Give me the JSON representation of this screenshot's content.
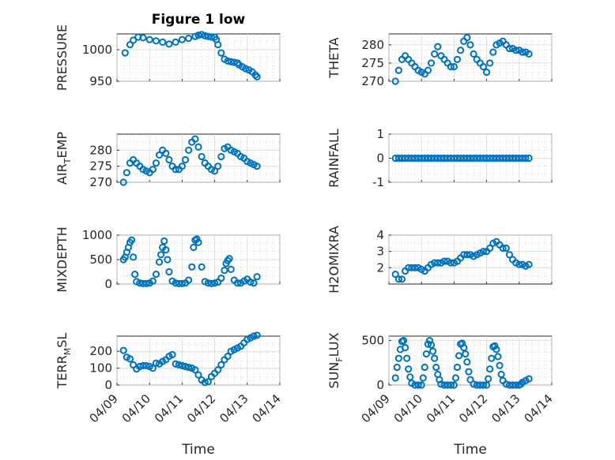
{
  "chart_data": {
    "type": "scatter",
    "title": "Figure 1 low",
    "marker": "circle",
    "color": "#0072BD",
    "time_ticks": [
      "04/09",
      "04/10",
      "04/11",
      "04/12",
      "04/13",
      "04/14"
    ],
    "xlabel": "Time",
    "x_unit": "days since 04/09 00:00",
    "x_range": [
      0,
      5
    ],
    "panels": [
      {
        "id": "pressure",
        "ylabel": "PRESSURE",
        "ylim": [
          950,
          1025
        ],
        "yticks": [
          950,
          1000
        ],
        "x": [
          0.25,
          0.4,
          0.5,
          0.65,
          0.8,
          1.0,
          1.2,
          1.4,
          1.6,
          1.8,
          2.0,
          2.2,
          2.4,
          2.5,
          2.6,
          2.7,
          2.8,
          2.9,
          3.0,
          3.05,
          3.1,
          3.2,
          3.3,
          3.4,
          3.5,
          3.6,
          3.7,
          3.75,
          3.85,
          3.95,
          4.05,
          4.15,
          4.25,
          4.3
        ],
        "y": [
          995,
          1008,
          1015,
          1020,
          1019,
          1016,
          1014,
          1012,
          1009,
          1012,
          1016,
          1018,
          1021,
          1023,
          1024,
          1022,
          1021,
          1020,
          1020,
          1016,
          1008,
          995,
          985,
          982,
          981,
          980,
          979,
          976,
          973,
          970,
          968,
          965,
          960,
          957
        ]
      },
      {
        "id": "theta",
        "ylabel": "THETA",
        "ylim": [
          270,
          283
        ],
        "yticks": [
          270,
          275,
          280
        ],
        "x": [
          0.2,
          0.3,
          0.4,
          0.5,
          0.6,
          0.7,
          0.8,
          0.9,
          1.0,
          1.1,
          1.2,
          1.3,
          1.4,
          1.5,
          1.6,
          1.7,
          1.8,
          1.9,
          2.0,
          2.1,
          2.2,
          2.3,
          2.4,
          2.5,
          2.6,
          2.7,
          2.8,
          2.9,
          3.0,
          3.1,
          3.2,
          3.3,
          3.4,
          3.5,
          3.6,
          3.7,
          3.8,
          3.9,
          4.0,
          4.1,
          4.2,
          4.3
        ],
        "y": [
          270,
          273,
          276,
          277,
          276,
          275,
          274,
          273,
          272.5,
          272,
          273,
          275,
          277.5,
          279.5,
          277,
          276,
          275,
          274,
          274,
          276,
          278.5,
          281,
          282,
          280,
          277.5,
          276,
          275,
          274,
          272.5,
          275,
          278,
          280,
          280.5,
          281,
          280,
          279,
          279,
          278.5,
          278.5,
          278,
          278,
          277.5
        ]
      },
      {
        "id": "air_temp",
        "ylabel": "AIR_TEMP",
        "ylim": [
          270,
          285
        ],
        "yticks": [
          270,
          275,
          280
        ],
        "x": [
          0.2,
          0.3,
          0.4,
          0.5,
          0.6,
          0.7,
          0.8,
          0.9,
          1.0,
          1.1,
          1.2,
          1.3,
          1.4,
          1.5,
          1.6,
          1.7,
          1.8,
          1.9,
          2.0,
          2.1,
          2.2,
          2.3,
          2.4,
          2.5,
          2.6,
          2.7,
          2.8,
          2.9,
          3.0,
          3.1,
          3.2,
          3.3,
          3.4,
          3.5,
          3.6,
          3.7,
          3.8,
          3.9,
          4.0,
          4.1,
          4.2,
          4.3
        ],
        "y": [
          270,
          273,
          276,
          277,
          276,
          275,
          274,
          273.5,
          273,
          274,
          276,
          278.5,
          280,
          279,
          277,
          275,
          274,
          274,
          275,
          277,
          280,
          282.5,
          283.5,
          281,
          278,
          276,
          275,
          274,
          273.5,
          275,
          278,
          280.5,
          281,
          280,
          279.5,
          279,
          278,
          277.5,
          276.5,
          276,
          275.5,
          275
        ]
      },
      {
        "id": "rainfall",
        "ylabel": "RAINFALL",
        "ylim": [
          -1,
          1
        ],
        "yticks": [
          -1,
          0,
          1
        ],
        "x": [
          0.2,
          0.3,
          0.4,
          0.5,
          0.6,
          0.7,
          0.8,
          0.9,
          1.0,
          1.1,
          1.2,
          1.3,
          1.4,
          1.5,
          1.6,
          1.7,
          1.8,
          1.9,
          2.0,
          2.1,
          2.2,
          2.3,
          2.4,
          2.5,
          2.6,
          2.7,
          2.8,
          2.9,
          3.0,
          3.1,
          3.2,
          3.3,
          3.4,
          3.5,
          3.6,
          3.7,
          3.8,
          3.9,
          4.0,
          4.1,
          4.2,
          4.3
        ],
        "y": [
          0,
          0,
          0,
          0,
          0,
          0,
          0,
          0,
          0,
          0,
          0,
          0,
          0,
          0,
          0,
          0,
          0,
          0,
          0,
          0,
          0,
          0,
          0,
          0,
          0,
          0,
          0,
          0,
          0,
          0,
          0,
          0,
          0,
          0,
          0,
          0,
          0,
          0,
          0,
          0,
          0,
          0
        ]
      },
      {
        "id": "mixdepth",
        "ylabel": "MIXDEPTH",
        "ylim": [
          0,
          1000
        ],
        "yticks": [
          0,
          500,
          1000
        ],
        "x": [
          0.2,
          0.25,
          0.3,
          0.35,
          0.4,
          0.45,
          0.5,
          0.55,
          0.6,
          0.7,
          0.8,
          0.9,
          1.0,
          1.1,
          1.2,
          1.3,
          1.35,
          1.4,
          1.45,
          1.5,
          1.55,
          1.6,
          1.7,
          1.8,
          1.9,
          2.0,
          2.1,
          2.2,
          2.3,
          2.35,
          2.4,
          2.45,
          2.5,
          2.6,
          2.7,
          2.8,
          2.9,
          3.0,
          3.1,
          3.2,
          3.3,
          3.35,
          3.4,
          3.45,
          3.5,
          3.6,
          3.7,
          3.8,
          3.9,
          4.0,
          4.1,
          4.2,
          4.3
        ],
        "y": [
          500,
          550,
          650,
          750,
          850,
          900,
          550,
          200,
          50,
          20,
          10,
          10,
          20,
          60,
          200,
          450,
          600,
          750,
          880,
          700,
          500,
          250,
          60,
          20,
          10,
          10,
          20,
          80,
          350,
          750,
          900,
          920,
          850,
          350,
          50,
          20,
          10,
          20,
          40,
          120,
          280,
          420,
          480,
          520,
          300,
          80,
          20,
          20,
          60,
          100,
          40,
          20,
          150
        ]
      },
      {
        "id": "h2omixra",
        "ylabel": "H2OMIXRA",
        "ylim": [
          1,
          4
        ],
        "yticks": [
          2,
          3,
          4
        ],
        "x": [
          0.2,
          0.3,
          0.4,
          0.5,
          0.6,
          0.7,
          0.8,
          0.9,
          1.0,
          1.1,
          1.2,
          1.3,
          1.4,
          1.5,
          1.6,
          1.7,
          1.8,
          1.9,
          2.0,
          2.1,
          2.2,
          2.3,
          2.4,
          2.5,
          2.6,
          2.7,
          2.8,
          2.9,
          3.0,
          3.1,
          3.2,
          3.3,
          3.4,
          3.5,
          3.6,
          3.7,
          3.8,
          3.9,
          4.0,
          4.1,
          4.2,
          4.3
        ],
        "y": [
          1.6,
          1.3,
          1.3,
          1.8,
          2.0,
          2.0,
          2.0,
          2.0,
          1.9,
          1.8,
          2.0,
          2.2,
          2.3,
          2.3,
          2.3,
          2.4,
          2.4,
          2.3,
          2.3,
          2.4,
          2.6,
          2.8,
          2.8,
          2.8,
          2.7,
          2.8,
          2.9,
          3.0,
          3.0,
          3.2,
          3.5,
          3.6,
          3.4,
          3.2,
          3.2,
          2.8,
          2.5,
          2.3,
          2.2,
          2.2,
          2.1,
          2.2
        ]
      },
      {
        "id": "terr_msl",
        "ylabel": "TERR_MSL",
        "ylim": [
          0,
          290
        ],
        "yticks": [
          0,
          100,
          200
        ],
        "x": [
          0.2,
          0.3,
          0.4,
          0.5,
          0.6,
          0.7,
          0.8,
          0.9,
          1.0,
          1.1,
          1.2,
          1.3,
          1.4,
          1.5,
          1.6,
          1.7,
          1.8,
          1.9,
          2.0,
          2.1,
          2.2,
          2.3,
          2.4,
          2.5,
          2.6,
          2.7,
          2.8,
          2.9,
          3.0,
          3.1,
          3.2,
          3.3,
          3.4,
          3.5,
          3.6,
          3.7,
          3.8,
          3.9,
          4.0,
          4.1,
          4.2,
          4.3
        ],
        "y": [
          205,
          165,
          155,
          120,
          95,
          110,
          115,
          115,
          110,
          100,
          130,
          125,
          140,
          150,
          170,
          180,
          125,
          120,
          115,
          110,
          105,
          100,
          90,
          60,
          30,
          15,
          20,
          50,
          70,
          90,
          120,
          150,
          170,
          200,
          210,
          220,
          230,
          250,
          270,
          280,
          290,
          295
        ]
      },
      {
        "id": "sun_flux",
        "ylabel": "SUN_FLUX",
        "ylim": [
          0,
          550
        ],
        "yticks": [
          0,
          500
        ],
        "x": [
          0.2,
          0.25,
          0.3,
          0.35,
          0.4,
          0.45,
          0.5,
          0.55,
          0.6,
          0.65,
          0.7,
          0.8,
          0.9,
          1.0,
          1.05,
          1.1,
          1.15,
          1.2,
          1.25,
          1.3,
          1.35,
          1.4,
          1.45,
          1.5,
          1.55,
          1.6,
          1.7,
          1.8,
          1.9,
          2.0,
          2.05,
          2.1,
          2.15,
          2.2,
          2.25,
          2.3,
          2.35,
          2.4,
          2.45,
          2.5,
          2.6,
          2.7,
          2.8,
          2.9,
          3.0,
          3.05,
          3.1,
          3.15,
          3.2,
          3.25,
          3.3,
          3.35,
          3.4,
          3.45,
          3.5,
          3.6,
          3.7,
          3.8,
          3.9,
          4.0,
          4.05,
          4.1,
          4.2,
          4.3
        ],
        "y": [
          80,
          200,
          300,
          400,
          490,
          500,
          420,
          300,
          180,
          90,
          20,
          0,
          0,
          0,
          80,
          200,
          350,
          460,
          500,
          450,
          380,
          300,
          200,
          120,
          60,
          10,
          0,
          0,
          0,
          0,
          80,
          200,
          330,
          460,
          470,
          420,
          350,
          260,
          150,
          60,
          10,
          0,
          0,
          0,
          0,
          70,
          180,
          300,
          430,
          440,
          400,
          320,
          220,
          120,
          50,
          10,
          0,
          0,
          0,
          0,
          10,
          30,
          50,
          70
        ]
      }
    ]
  }
}
